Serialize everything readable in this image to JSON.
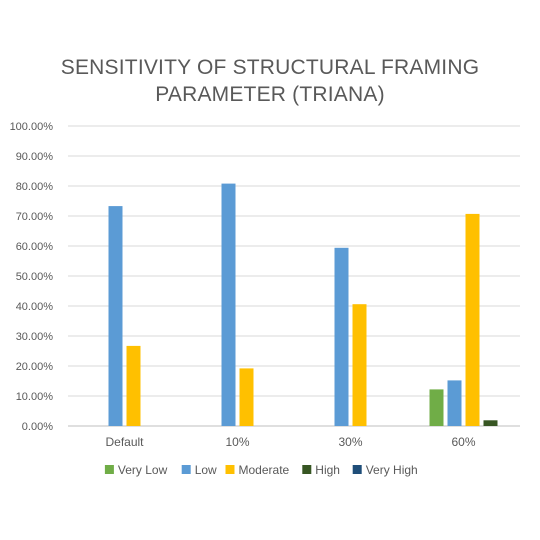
{
  "chart_data": {
    "type": "bar",
    "title_lines": [
      "SENSITIVITY OF STRUCTURAL FRAMING",
      "PARAMETER (TRIANA)"
    ],
    "xlabel": "",
    "ylabel": "",
    "categories": [
      "Default",
      "10%",
      "30%",
      "60%"
    ],
    "ylim": [
      0,
      100
    ],
    "ytick_labels": [
      "0.00%",
      "10.00%",
      "20.00%",
      "30.00%",
      "40.00%",
      "50.00%",
      "60.00%",
      "70.00%",
      "80.00%",
      "90.00%",
      "100.00%"
    ],
    "grid": true,
    "legend_position": "bottom",
    "series": [
      {
        "name": "Very Low",
        "color": "#70ad47",
        "values": [
          0,
          0,
          0,
          12.2
        ]
      },
      {
        "name": "Low",
        "color": "#5b9bd5",
        "values": [
          73.3,
          80.8,
          59.4,
          15.2
        ]
      },
      {
        "name": "Moderate",
        "color": "#ffc000",
        "values": [
          26.7,
          19.2,
          40.6,
          70.7
        ]
      },
      {
        "name": "High",
        "color": "#375623",
        "values": [
          0,
          0,
          0,
          1.9
        ]
      },
      {
        "name": "Very High",
        "color": "#1f4e79",
        "values": [
          0,
          0,
          0,
          0
        ]
      }
    ]
  }
}
